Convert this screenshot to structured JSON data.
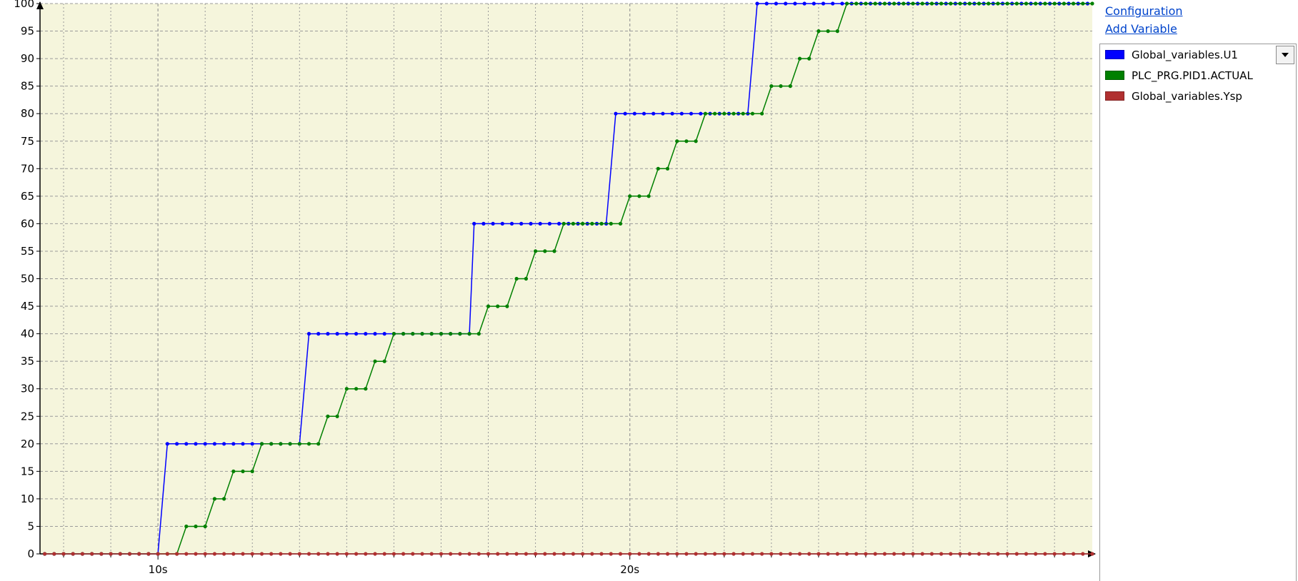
{
  "chart_data": {
    "type": "line",
    "title": "",
    "xlabel": "",
    "ylabel": "",
    "xlim": [
      7.5,
      29.8
    ],
    "ylim": [
      0,
      100
    ],
    "x_ticks": [
      {
        "value": 10,
        "label": "10s"
      },
      {
        "value": 20,
        "label": "20s"
      }
    ],
    "y_ticks": [
      {
        "value": 0,
        "label": "0"
      },
      {
        "value": 5,
        "label": "5"
      },
      {
        "value": 10,
        "label": "10"
      },
      {
        "value": 15,
        "label": "15"
      },
      {
        "value": 20,
        "label": "20"
      },
      {
        "value": 25,
        "label": "25"
      },
      {
        "value": 30,
        "label": "30"
      },
      {
        "value": 35,
        "label": "35"
      },
      {
        "value": 40,
        "label": "40"
      },
      {
        "value": 45,
        "label": "45"
      },
      {
        "value": 50,
        "label": "50"
      },
      {
        "value": 55,
        "label": "55"
      },
      {
        "value": 60,
        "label": "60"
      },
      {
        "value": 65,
        "label": "65"
      },
      {
        "value": 70,
        "label": "70"
      },
      {
        "value": 75,
        "label": "75"
      },
      {
        "value": 80,
        "label": "80"
      },
      {
        "value": 85,
        "label": "85"
      },
      {
        "value": 90,
        "label": "90"
      },
      {
        "value": 95,
        "label": "95"
      },
      {
        "value": 100,
        "label": "100"
      }
    ],
    "grid": true,
    "sample_interval": 0.2,
    "series": [
      {
        "name": "Global_variables.U1",
        "color": "#0000ff",
        "steps": [
          {
            "start": 7.0,
            "end": 10.0,
            "value": 0
          },
          {
            "start": 10.2,
            "end": 13.0,
            "value": 20
          },
          {
            "start": 13.2,
            "end": 16.5,
            "value": 40
          },
          {
            "start": 16.7,
            "end": 19.5,
            "value": 60
          },
          {
            "start": 19.7,
            "end": 22.5,
            "value": 80
          },
          {
            "start": 22.7,
            "end": 30.0,
            "value": 100
          }
        ]
      },
      {
        "name": "PLC_PRG.PID1.ACTUAL",
        "color": "#008000",
        "steps": [
          {
            "start": 7.0,
            "end": 10.4,
            "value": 0
          },
          {
            "start": 10.6,
            "end": 11.0,
            "value": 5
          },
          {
            "start": 11.2,
            "end": 11.4,
            "value": 10
          },
          {
            "start": 11.6,
            "end": 12.0,
            "value": 15
          },
          {
            "start": 12.2,
            "end": 13.4,
            "value": 20
          },
          {
            "start": 13.6,
            "end": 13.8,
            "value": 25
          },
          {
            "start": 14.0,
            "end": 14.4,
            "value": 30
          },
          {
            "start": 14.6,
            "end": 14.8,
            "value": 35
          },
          {
            "start": 15.0,
            "end": 16.8,
            "value": 40
          },
          {
            "start": 17.0,
            "end": 17.4,
            "value": 45
          },
          {
            "start": 17.6,
            "end": 17.8,
            "value": 50
          },
          {
            "start": 18.0,
            "end": 18.4,
            "value": 55
          },
          {
            "start": 18.6,
            "end": 19.8,
            "value": 60
          },
          {
            "start": 20.0,
            "end": 20.4,
            "value": 65
          },
          {
            "start": 20.6,
            "end": 20.8,
            "value": 70
          },
          {
            "start": 21.0,
            "end": 21.4,
            "value": 75
          },
          {
            "start": 21.6,
            "end": 22.8,
            "value": 80
          },
          {
            "start": 23.0,
            "end": 23.4,
            "value": 85
          },
          {
            "start": 23.6,
            "end": 23.8,
            "value": 90
          },
          {
            "start": 24.0,
            "end": 24.4,
            "value": 95
          },
          {
            "start": 24.6,
            "end": 30.0,
            "value": 100
          }
        ]
      },
      {
        "name": "Global_variables.Ysp",
        "color": "#b03030",
        "steps": [
          {
            "start": 7.0,
            "end": 30.0,
            "value": 0
          }
        ]
      }
    ]
  },
  "colors": {
    "plot_background": "#f5f5dc",
    "grid": "#9a9a9a",
    "axis": "#000000"
  },
  "side_panel": {
    "configuration_label": "Configuration",
    "add_variable_label": "Add Variable",
    "dropdown_icon": "chevron-down-icon",
    "variables": [
      {
        "name": "Global_variables.U1",
        "color": "#0000ff"
      },
      {
        "name": "PLC_PRG.PID1.ACTUAL",
        "color": "#008000"
      },
      {
        "name": "Global_variables.Ysp",
        "color": "#b03030"
      }
    ]
  }
}
